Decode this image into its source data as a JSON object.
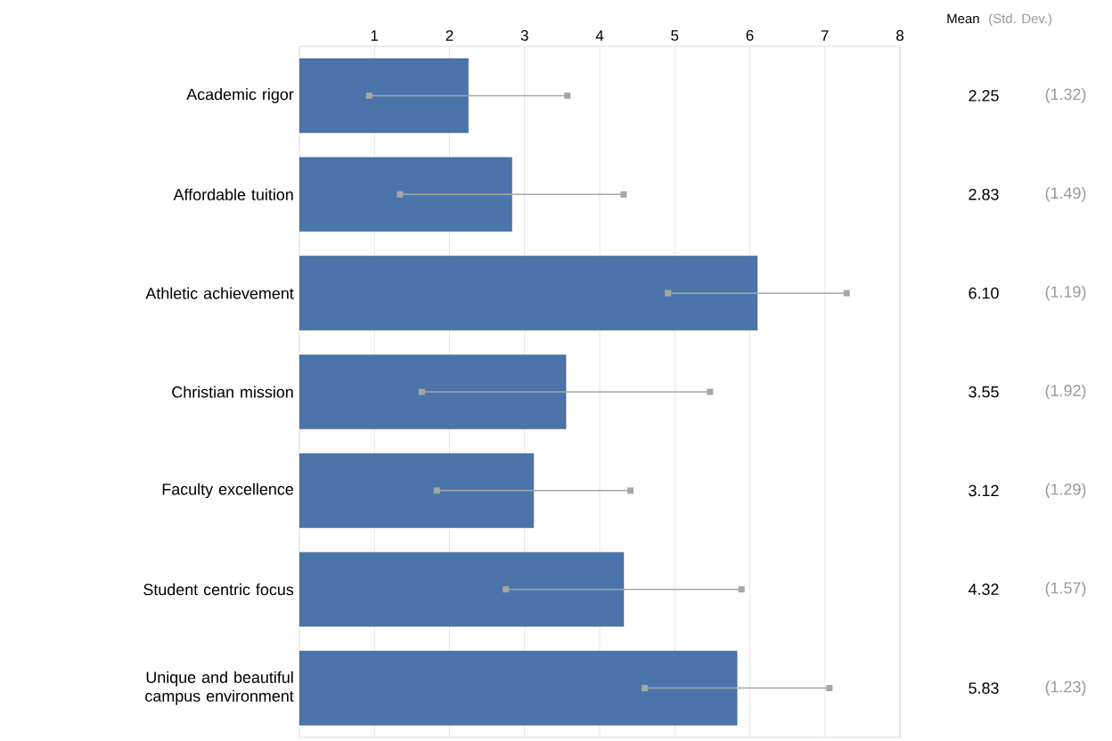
{
  "chart_data": {
    "type": "bar",
    "orientation": "horizontal",
    "categories": [
      "Academic rigor",
      "Affordable tuition",
      "Athletic achievement",
      "Christian mission",
      "Faculty excellence",
      "Student centric focus",
      "Unique and beautiful campus environment"
    ],
    "values": [
      2.25,
      2.83,
      6.1,
      3.55,
      3.12,
      4.32,
      5.83
    ],
    "value_labels": [
      "2.25",
      "2.83",
      "6.10",
      "3.55",
      "3.12",
      "4.32",
      "5.83"
    ],
    "errors": [
      1.32,
      1.49,
      1.19,
      1.92,
      1.29,
      1.57,
      1.23
    ],
    "color": "#4a74aa",
    "xlim": [
      0,
      8
    ],
    "xticks": [
      1,
      2,
      3,
      4,
      5,
      6,
      7,
      8
    ],
    "grid": "x",
    "annotations": [
      "Mean",
      "(Std. Dev.)",
      "(1.32)",
      "(1.49)",
      "(1.19)",
      "(1.92)",
      "(1.29)",
      "(1.57)",
      "(1.23)"
    ]
  }
}
